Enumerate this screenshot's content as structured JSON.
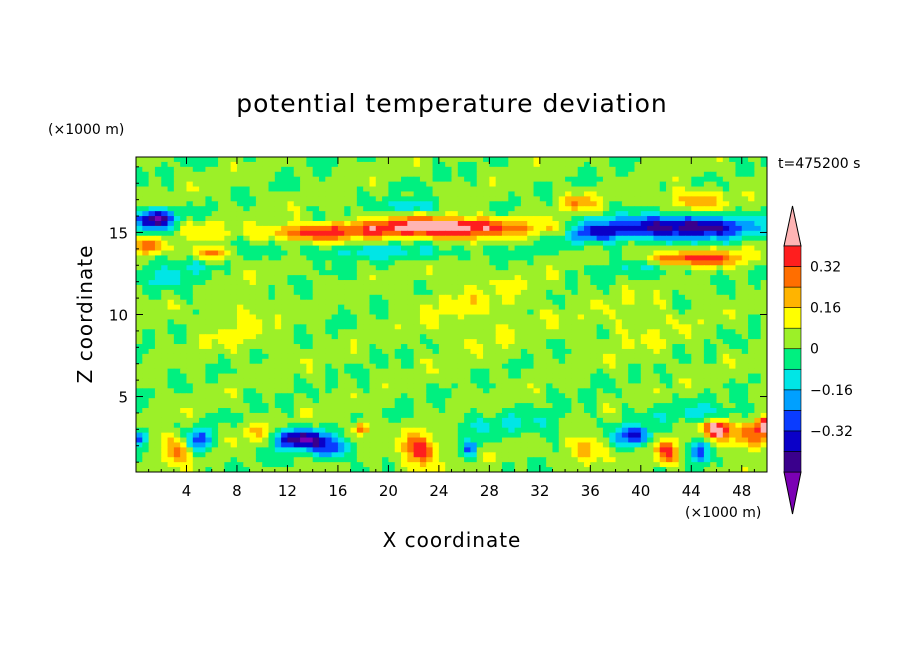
{
  "chart_data": {
    "type": "heatmap",
    "title": "potential temperature deviation",
    "xlabel": "X coordinate",
    "ylabel": "Z coordinate",
    "x_unit": "(×1000 m)",
    "y_unit": "(×1000 m)",
    "time_label": "t=475200 s",
    "xlim": [
      0,
      50
    ],
    "ylim": [
      0.4,
      19.6
    ],
    "x_ticks": [
      4,
      8,
      12,
      16,
      20,
      24,
      28,
      32,
      36,
      40,
      44,
      48
    ],
    "y_ticks": [
      5,
      10,
      15
    ],
    "colorbar": {
      "levels": [
        -0.48,
        -0.4,
        -0.32,
        -0.24,
        -0.16,
        -0.08,
        0,
        0.08,
        0.16,
        0.24,
        0.32,
        0.4
      ],
      "colors": [
        "#7b00b4",
        "#3a008c",
        "#0a00c8",
        "#0a3cff",
        "#00a0ff",
        "#00e6e6",
        "#00f080",
        "#9cf028",
        "#ffff00",
        "#ffb400",
        "#ff6e00",
        "#ff1e1e",
        "#ffb4b4"
      ],
      "tick_labels": [
        "−0.32",
        "−0.16",
        "0",
        "0.16",
        "0.32"
      ],
      "tick_values": [
        -0.32,
        -0.16,
        0,
        0.16,
        0.32
      ]
    },
    "background_value": 0.02,
    "features": [
      {
        "x": 24,
        "z": 15.3,
        "sx": 6,
        "sz": 0.6,
        "amp": 0.52
      },
      {
        "x": 14,
        "z": 15.0,
        "sx": 4,
        "sz": 0.5,
        "amp": 0.33
      },
      {
        "x": 34,
        "z": 15.2,
        "sx": 3,
        "sz": 0.5,
        "amp": 0.15
      },
      {
        "x": 20,
        "z": 13.8,
        "sx": 9,
        "sz": 0.5,
        "amp": -0.12
      },
      {
        "x": 43,
        "z": 15.3,
        "sx": 6,
        "sz": 0.7,
        "amp": -0.5
      },
      {
        "x": 36,
        "z": 15.0,
        "sx": 2.5,
        "sz": 0.6,
        "amp": -0.32
      },
      {
        "x": 44,
        "z": 13.4,
        "sx": 4,
        "sz": 0.5,
        "amp": 0.4
      },
      {
        "x": 41,
        "z": 13.0,
        "sx": 5,
        "sz": 0.7,
        "amp": -0.12
      },
      {
        "x": 44,
        "z": 17.0,
        "sx": 2.5,
        "sz": 0.6,
        "amp": 0.2
      },
      {
        "x": 35,
        "z": 16.8,
        "sx": 1.5,
        "sz": 0.5,
        "amp": 0.2
      },
      {
        "x": 1.5,
        "z": 15.8,
        "sx": 1.6,
        "sz": 0.6,
        "amp": -0.5
      },
      {
        "x": 1.0,
        "z": 14.2,
        "sx": 1.2,
        "sz": 0.5,
        "amp": 0.3
      },
      {
        "x": 6,
        "z": 13.7,
        "sx": 1.6,
        "sz": 0.4,
        "amp": 0.26
      },
      {
        "x": 5,
        "z": 15.2,
        "sx": 2.0,
        "sz": 0.6,
        "amp": 0.12
      },
      {
        "x": 22,
        "z": 16.6,
        "sx": 2,
        "sz": 0.4,
        "amp": -0.2
      },
      {
        "x": 3,
        "z": 12.5,
        "sx": 3,
        "sz": 1.2,
        "amp": -0.1
      },
      {
        "x": 27,
        "z": 10.5,
        "sx": 5,
        "sz": 2.5,
        "amp": 0.07
      },
      {
        "x": 8,
        "z": 9.5,
        "sx": 3,
        "sz": 2,
        "amp": 0.07
      },
      {
        "x": 40,
        "z": 9.5,
        "sx": 4,
        "sz": 2,
        "amp": 0.06
      },
      {
        "x": 13,
        "z": 2.4,
        "sx": 2,
        "sz": 0.6,
        "amp": -0.5
      },
      {
        "x": 15.5,
        "z": 1.8,
        "sx": 1.5,
        "sz": 0.6,
        "amp": -0.28
      },
      {
        "x": 17.8,
        "z": 3.0,
        "sx": 0.6,
        "sz": 0.4,
        "amp": 0.38
      },
      {
        "x": 22.5,
        "z": 1.7,
        "sx": 1.5,
        "sz": 1.0,
        "amp": 0.34
      },
      {
        "x": 3,
        "z": 1.8,
        "sx": 1,
        "sz": 1,
        "amp": 0.24
      },
      {
        "x": 5,
        "z": 2.4,
        "sx": 1,
        "sz": 0.7,
        "amp": -0.3
      },
      {
        "x": 0.3,
        "z": 2.5,
        "sx": 0.6,
        "sz": 0.5,
        "amp": -0.3
      },
      {
        "x": 9.5,
        "z": 2.8,
        "sx": 1.2,
        "sz": 0.6,
        "amp": 0.16
      },
      {
        "x": 26.5,
        "z": 1.8,
        "sx": 0.6,
        "sz": 0.5,
        "amp": -0.3
      },
      {
        "x": 35.5,
        "z": 1.8,
        "sx": 1.2,
        "sz": 0.8,
        "amp": 0.24
      },
      {
        "x": 39.5,
        "z": 2.6,
        "sx": 1.3,
        "sz": 0.6,
        "amp": -0.36
      },
      {
        "x": 42,
        "z": 1.6,
        "sx": 0.9,
        "sz": 0.8,
        "amp": 0.3
      },
      {
        "x": 44.7,
        "z": 1.7,
        "sx": 0.7,
        "sz": 0.7,
        "amp": -0.28
      },
      {
        "x": 46,
        "z": 3.0,
        "sx": 1.0,
        "sz": 0.5,
        "amp": 0.46
      },
      {
        "x": 48.5,
        "z": 2.6,
        "sx": 2.0,
        "sz": 0.7,
        "amp": 0.3
      },
      {
        "x": 49.7,
        "z": 3.3,
        "sx": 0.5,
        "sz": 0.5,
        "amp": 0.42
      },
      {
        "x": 30,
        "z": 3.3,
        "sx": 5,
        "sz": 0.7,
        "amp": -0.1
      },
      {
        "x": 45,
        "z": 4.0,
        "sx": 5,
        "sz": 0.6,
        "amp": -0.1
      }
    ]
  }
}
